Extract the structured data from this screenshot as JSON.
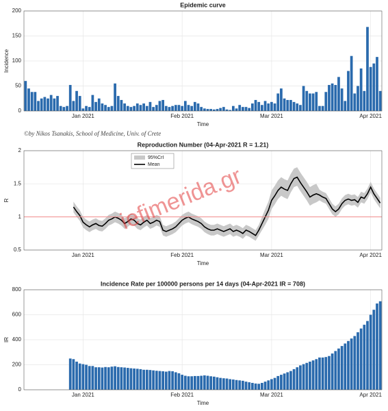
{
  "chart_data": [
    {
      "type": "bar",
      "title": "Epidemic curve",
      "ylabel": "Incidence",
      "xlabel": "Time",
      "credit": "©by Nikos Tsanakis, School of Medicine, Univ. of Crete",
      "categories": [
        null,
        null,
        null,
        null,
        null,
        null,
        null,
        null,
        null,
        null,
        null,
        null,
        null,
        null,
        null,
        null,
        null,
        null,
        "Jan 2021",
        null,
        null,
        null,
        null,
        null,
        null,
        null,
        null,
        null,
        null,
        null,
        null,
        null,
        null,
        null,
        null,
        null,
        null,
        null,
        null,
        null,
        null,
        null,
        null,
        null,
        null,
        null,
        null,
        null,
        null,
        "Feb 2021",
        null,
        null,
        null,
        null,
        null,
        null,
        null,
        null,
        null,
        null,
        null,
        null,
        null,
        null,
        null,
        null,
        null,
        null,
        null,
        null,
        null,
        null,
        null,
        null,
        null,
        null,
        null,
        "Mar 2021",
        null,
        null,
        null,
        null,
        null,
        null,
        null,
        null,
        null,
        null,
        null,
        null,
        null,
        null,
        null,
        null,
        null,
        null,
        null,
        null,
        null,
        null,
        null,
        null,
        null,
        null,
        null,
        null,
        null,
        null,
        "Apr 2021",
        null,
        null,
        null
      ],
      "values": [
        60,
        45,
        38,
        38,
        20,
        25,
        28,
        25,
        32,
        25,
        30,
        10,
        8,
        10,
        52,
        20,
        40,
        30,
        5,
        10,
        8,
        32,
        18,
        25,
        15,
        12,
        8,
        10,
        55,
        30,
        22,
        15,
        10,
        8,
        10,
        15,
        12,
        15,
        10,
        18,
        8,
        12,
        20,
        22,
        10,
        8,
        10,
        12,
        12,
        10,
        20,
        12,
        10,
        18,
        15,
        8,
        5,
        4,
        4,
        3,
        4,
        6,
        8,
        3,
        2,
        10,
        5,
        12,
        8,
        8,
        6,
        15,
        22,
        18,
        12,
        20,
        15,
        18,
        15,
        35,
        45,
        25,
        22,
        22,
        18,
        15,
        12,
        50,
        40,
        35,
        35,
        38,
        10,
        10,
        38,
        52,
        55,
        52,
        68,
        45,
        20,
        80,
        110,
        35,
        50,
        85,
        40,
        168,
        88,
        95,
        108,
        40
      ],
      "color": "#2a6aad",
      "ylim": [
        0,
        200
      ],
      "yticks": [
        0,
        50,
        100,
        150,
        200
      ],
      "grid": true
    },
    {
      "type": "line",
      "title": "Reproduction Number (04-Apr-2021 R = 1.21)",
      "ylabel": "R",
      "xlabel": "Time",
      "watermark": "iefimerida.gr",
      "legend": "upper left",
      "categories": [
        null,
        null,
        null,
        null,
        null,
        null,
        null,
        null,
        null,
        null,
        null,
        null,
        null,
        null,
        null,
        null,
        null,
        null,
        "Jan 2021",
        null,
        null,
        null,
        null,
        null,
        null,
        null,
        null,
        null,
        null,
        null,
        null,
        null,
        null,
        null,
        null,
        null,
        null,
        null,
        null,
        null,
        null,
        null,
        null,
        null,
        null,
        null,
        null,
        null,
        null,
        "Feb 2021",
        null,
        null,
        null,
        null,
        null,
        null,
        null,
        null,
        null,
        null,
        null,
        null,
        null,
        null,
        null,
        null,
        null,
        null,
        null,
        null,
        null,
        null,
        null,
        null,
        null,
        null,
        null,
        "Mar 2021",
        null,
        null,
        null,
        null,
        null,
        null,
        null,
        null,
        null,
        null,
        null,
        null,
        null,
        null,
        null,
        null,
        null,
        null,
        null,
        null,
        null,
        null,
        null,
        null,
        null,
        null,
        null,
        null,
        null,
        null,
        "Apr 2021",
        null,
        null,
        null
      ],
      "series": [
        {
          "name": "95%CrI",
          "color": "#c8c8c8",
          "lower": [
            null,
            null,
            null,
            null,
            null,
            null,
            null,
            null,
            null,
            null,
            null,
            null,
            null,
            null,
            null,
            1.07,
            1.0,
            0.94,
            0.84,
            0.8,
            0.77,
            0.8,
            0.82,
            0.79,
            0.78,
            0.82,
            0.87,
            0.89,
            0.92,
            0.9,
            0.87,
            0.82,
            0.85,
            0.89,
            0.87,
            0.82,
            0.8,
            0.84,
            0.87,
            0.82,
            0.84,
            0.87,
            0.85,
            0.72,
            0.7,
            0.72,
            0.74,
            0.77,
            0.82,
            0.87,
            0.9,
            0.92,
            0.89,
            0.87,
            0.85,
            0.82,
            0.77,
            0.74,
            0.72,
            0.72,
            0.74,
            0.72,
            0.7,
            0.72,
            0.74,
            0.7,
            0.72,
            0.7,
            0.67,
            0.72,
            0.7,
            0.67,
            0.64,
            0.72,
            0.8,
            0.88,
            0.97,
            1.12,
            1.19,
            1.27,
            1.32,
            1.29,
            1.27,
            1.37,
            1.45,
            1.47,
            1.39,
            1.32,
            1.25,
            1.17,
            1.2,
            1.22,
            1.25,
            1.22,
            1.2,
            1.12,
            1.04,
            1.0,
            1.04,
            1.12,
            1.17,
            1.19,
            1.17,
            1.18,
            1.14,
            1.22,
            1.2,
            1.27,
            1.37,
            1.27,
            1.2,
            1.13
          ],
          "upper": [
            null,
            null,
            null,
            null,
            null,
            null,
            null,
            null,
            null,
            null,
            null,
            null,
            null,
            null,
            null,
            1.23,
            1.16,
            1.1,
            1.0,
            0.96,
            0.93,
            0.96,
            0.98,
            0.95,
            0.94,
            0.98,
            1.03,
            1.05,
            1.08,
            1.06,
            1.03,
            0.98,
            1.01,
            1.05,
            1.03,
            0.98,
            0.96,
            1.0,
            1.03,
            0.98,
            1.0,
            1.03,
            1.01,
            0.88,
            0.86,
            0.88,
            0.9,
            0.93,
            0.98,
            1.03,
            1.06,
            1.08,
            1.05,
            1.03,
            1.01,
            0.98,
            0.93,
            0.9,
            0.88,
            0.88,
            0.9,
            0.88,
            0.86,
            0.88,
            0.9,
            0.86,
            0.88,
            0.86,
            0.83,
            0.88,
            0.86,
            0.83,
            0.8,
            0.88,
            1.0,
            1.12,
            1.23,
            1.4,
            1.47,
            1.55,
            1.6,
            1.57,
            1.55,
            1.65,
            1.73,
            1.75,
            1.67,
            1.6,
            1.53,
            1.45,
            1.48,
            1.5,
            1.41,
            1.38,
            1.36,
            1.28,
            1.2,
            1.16,
            1.2,
            1.28,
            1.33,
            1.35,
            1.33,
            1.34,
            1.3,
            1.38,
            1.36,
            1.43,
            1.53,
            1.43,
            1.36,
            1.29
          ]
        },
        {
          "name": "Mean",
          "color": "#000000",
          "values": [
            null,
            null,
            null,
            null,
            null,
            null,
            null,
            null,
            null,
            null,
            null,
            null,
            null,
            null,
            null,
            1.15,
            1.08,
            1.02,
            0.92,
            0.88,
            0.85,
            0.88,
            0.9,
            0.87,
            0.86,
            0.9,
            0.95,
            0.97,
            1.0,
            0.98,
            0.95,
            0.9,
            0.93,
            0.97,
            0.95,
            0.9,
            0.88,
            0.92,
            0.95,
            0.9,
            0.92,
            0.95,
            0.93,
            0.8,
            0.78,
            0.8,
            0.82,
            0.85,
            0.9,
            0.95,
            0.98,
            1.0,
            0.97,
            0.95,
            0.93,
            0.9,
            0.85,
            0.82,
            0.8,
            0.8,
            0.82,
            0.8,
            0.78,
            0.8,
            0.82,
            0.78,
            0.8,
            0.78,
            0.75,
            0.8,
            0.78,
            0.75,
            0.72,
            0.8,
            0.9,
            1.0,
            1.1,
            1.25,
            1.32,
            1.4,
            1.45,
            1.42,
            1.4,
            1.5,
            1.58,
            1.6,
            1.52,
            1.45,
            1.38,
            1.3,
            1.33,
            1.35,
            1.33,
            1.3,
            1.28,
            1.2,
            1.12,
            1.08,
            1.12,
            1.2,
            1.25,
            1.27,
            1.25,
            1.26,
            1.22,
            1.3,
            1.28,
            1.35,
            1.45,
            1.35,
            1.28,
            1.21
          ]
        }
      ],
      "hline": {
        "value": 1,
        "color": "#f08a8a"
      },
      "ylim": [
        0.5,
        2
      ],
      "yticks": [
        0.5,
        1,
        1.5,
        2
      ],
      "grid": true
    },
    {
      "type": "bar",
      "title": "Incidence Rate per 100000 persons per 14 days (04-Apr-2021 IR = 708)",
      "ylabel": "IR",
      "xlabel": "Time",
      "categories": [
        null,
        null,
        null,
        null,
        null,
        null,
        null,
        null,
        null,
        null,
        null,
        null,
        null,
        null,
        null,
        null,
        null,
        null,
        "Jan 2021",
        null,
        null,
        null,
        null,
        null,
        null,
        null,
        null,
        null,
        null,
        null,
        null,
        null,
        null,
        null,
        null,
        null,
        null,
        null,
        null,
        null,
        null,
        null,
        null,
        null,
        null,
        null,
        null,
        null,
        null,
        "Feb 2021",
        null,
        null,
        null,
        null,
        null,
        null,
        null,
        null,
        null,
        null,
        null,
        null,
        null,
        null,
        null,
        null,
        null,
        null,
        null,
        null,
        null,
        null,
        null,
        null,
        null,
        null,
        null,
        "Mar 2021",
        null,
        null,
        null,
        null,
        null,
        null,
        null,
        null,
        null,
        null,
        null,
        null,
        null,
        null,
        null,
        null,
        null,
        null,
        null,
        null,
        null,
        null,
        null,
        null,
        null,
        null,
        null,
        null,
        null,
        null,
        "Apr 2021",
        null,
        null,
        null
      ],
      "values": [
        null,
        null,
        null,
        null,
        null,
        null,
        null,
        null,
        null,
        null,
        null,
        null,
        null,
        null,
        250,
        245,
        225,
        210,
        205,
        200,
        190,
        190,
        180,
        180,
        178,
        182,
        180,
        185,
        188,
        182,
        180,
        178,
        175,
        172,
        170,
        168,
        165,
        160,
        160,
        158,
        155,
        152,
        150,
        148,
        145,
        150,
        148,
        140,
        132,
        120,
        112,
        108,
        108,
        110,
        110,
        112,
        115,
        112,
        108,
        105,
        100,
        95,
        92,
        90,
        85,
        82,
        78,
        75,
        72,
        65,
        60,
        55,
        50,
        48,
        55,
        65,
        75,
        85,
        95,
        110,
        120,
        130,
        140,
        150,
        165,
        180,
        195,
        205,
        215,
        225,
        235,
        245,
        258,
        258,
        262,
        270,
        290,
        310,
        330,
        350,
        370,
        390,
        410,
        430,
        460,
        490,
        520,
        550,
        600,
        640,
        690,
        708
      ],
      "color": "#2a6aad",
      "ylim": [
        0,
        800
      ],
      "yticks": [
        0,
        200,
        400,
        600,
        800
      ],
      "grid": true
    }
  ]
}
